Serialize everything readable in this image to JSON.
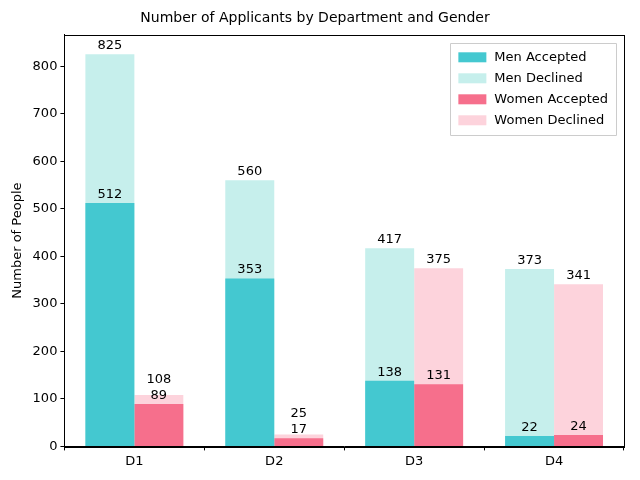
{
  "chart_data": {
    "type": "bar",
    "title": "Number of Applicants by Department and Gender",
    "y_label": "Number of People",
    "categories": [
      "D1",
      "D2",
      "D3",
      "D4"
    ],
    "series": [
      {
        "name": "Men Accepted",
        "color": "#44c8d0",
        "values": [
          512,
          353,
          138,
          22
        ]
      },
      {
        "name": "Men Declined",
        "color": "#c6efec",
        "values": [
          825,
          560,
          417,
          373
        ]
      },
      {
        "name": "Women Accepted",
        "color": "#f66f8c",
        "values": [
          89,
          17,
          131,
          24
        ]
      },
      {
        "name": "Women Declined",
        "color": "#fdd3dc",
        "values": [
          108,
          25,
          375,
          341
        ]
      }
    ],
    "ylim": [
      0,
      866
    ],
    "yticks": [
      0,
      100,
      200,
      300,
      400,
      500,
      600,
      700,
      800
    ],
    "stacked": false,
    "grid": false,
    "legend": "upper right",
    "data_labels": true
  }
}
